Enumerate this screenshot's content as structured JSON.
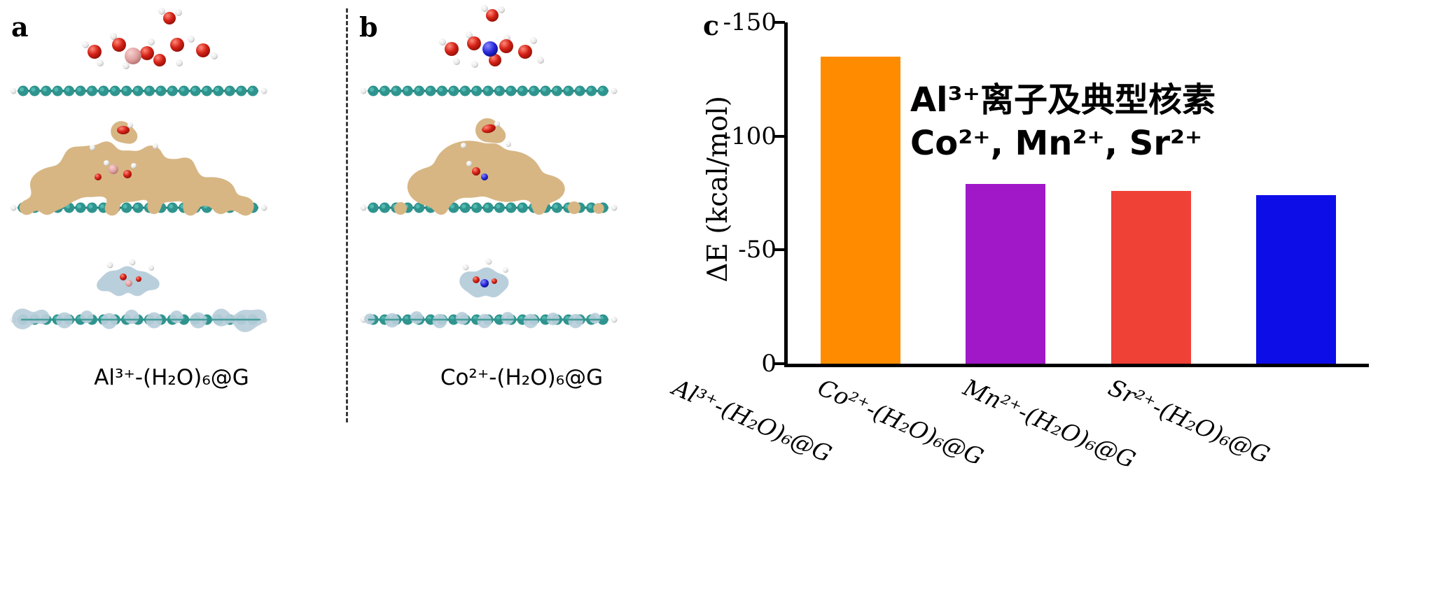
{
  "figure": {
    "panels": {
      "a": {
        "label": "a",
        "caption": "Al³⁺-(H₂O)₆@G"
      },
      "b": {
        "label": "b",
        "caption": "Co²⁺-(H₂O)₆@G"
      },
      "c": {
        "label": "c"
      }
    },
    "colors": {
      "graphene_teal": "#2f948e",
      "oxygen_red": "#d42015",
      "hydrogen_white": "#ececec",
      "aluminum_pink": "#e0a4a4",
      "cobalt_blue": "#2525d8",
      "positive_density_tan": "#d7b684",
      "negative_density_blue": "#b9cfdc"
    }
  },
  "chart_data": {
    "type": "bar",
    "title": "",
    "categories": [
      "Al³⁺-(H₂O)₆@G",
      "Co²⁺-(H₂O)₆@G",
      "Mn²⁺-(H₂O)₆@G",
      "Sr²⁺-(H₂O)₆@G"
    ],
    "values": [
      -135,
      -79,
      -76,
      -74
    ],
    "bar_colors": [
      "#FF8C00",
      "#A018C8",
      "#EF4135",
      "#0D0DE8"
    ],
    "xlabel": "",
    "ylabel": "ΔE (kcal/mol)",
    "ylim": [
      0,
      -150
    ],
    "yticks": [
      0,
      -50,
      -100,
      -150
    ],
    "grid": false,
    "legend": "none",
    "annotation": {
      "line1": "Al³⁺离子及典型核素",
      "line2": "Co²⁺, Mn²⁺, Sr²⁺"
    }
  }
}
